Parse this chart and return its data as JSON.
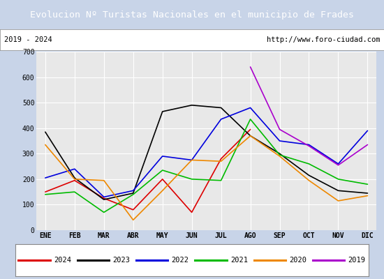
{
  "title": "Evolucion Nº Turistas Nacionales en el municipio de Frades",
  "subtitle_left": "2019 - 2024",
  "subtitle_right": "http://www.foro-ciudad.com",
  "title_bg": "#4a6fad",
  "title_color": "#ffffff",
  "subtitle_bg": "#ffffff",
  "subtitle_color": "#000000",
  "outer_bg": "#c8d4e8",
  "plot_bg": "#e8e8e8",
  "months": [
    "ENE",
    "FEB",
    "MAR",
    "ABR",
    "MAY",
    "JUN",
    "JUL",
    "AGO",
    "SEP",
    "OCT",
    "NOV",
    "DIC"
  ],
  "ylim": [
    0,
    700
  ],
  "yticks": [
    0,
    100,
    200,
    300,
    400,
    500,
    600,
    700
  ],
  "series": {
    "2024": {
      "color": "#dd0000",
      "values": [
        150,
        195,
        125,
        80,
        200,
        70,
        280,
        395,
        null,
        null,
        null,
        null
      ]
    },
    "2023": {
      "color": "#000000",
      "values": [
        385,
        205,
        120,
        145,
        465,
        490,
        480,
        370,
        300,
        215,
        155,
        145
      ]
    },
    "2022": {
      "color": "#0000dd",
      "values": [
        205,
        240,
        130,
        155,
        290,
        275,
        435,
        480,
        350,
        335,
        260,
        390
      ]
    },
    "2021": {
      "color": "#00bb00",
      "values": [
        140,
        150,
        70,
        140,
        235,
        200,
        195,
        435,
        295,
        260,
        200,
        180
      ]
    },
    "2020": {
      "color": "#ee8800",
      "values": [
        335,
        200,
        195,
        40,
        155,
        275,
        270,
        370,
        290,
        195,
        115,
        135
      ]
    },
    "2019": {
      "color": "#aa00cc",
      "values": [
        null,
        null,
        null,
        null,
        null,
        null,
        null,
        640,
        395,
        330,
        255,
        335
      ]
    }
  },
  "legend_order": [
    "2024",
    "2023",
    "2022",
    "2021",
    "2020",
    "2019"
  ]
}
